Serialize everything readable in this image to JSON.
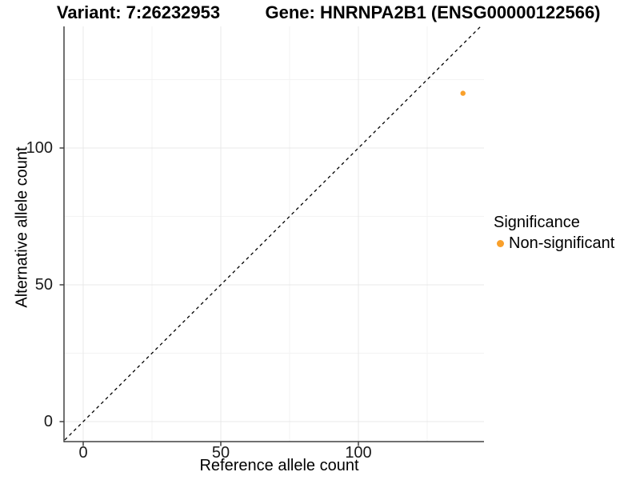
{
  "titles": {
    "left": "Variant: 7:26232953",
    "right": "Gene: HNRNPA2B1 (ENSG00000122566)"
  },
  "chart_data": {
    "type": "scatter",
    "title": "Variant: 7:26232953   |   Gene: HNRNPA2B1 (ENSG00000122566)",
    "xlabel": "Reference allele count",
    "ylabel": "Alternative allele count",
    "x_ticks": [
      0,
      50,
      100
    ],
    "y_ticks": [
      0,
      50,
      100
    ],
    "x_minor_ticks": [
      25,
      75,
      125
    ],
    "y_minor_ticks": [
      25,
      75,
      125
    ],
    "xlim": [
      -7,
      145.7
    ],
    "ylim": [
      -7.3,
      144.4
    ],
    "grid": {
      "major": true,
      "minor": true
    },
    "reference_line": {
      "type": "identity",
      "style": "dashed",
      "color": "#000000"
    },
    "points": [
      {
        "x": 138,
        "y": 120,
        "series": "Non-significant"
      }
    ],
    "legend": {
      "title": "Significance",
      "position": "right",
      "items": [
        {
          "label": "Non-significant",
          "color": "#F9A02B"
        }
      ]
    },
    "colors": {
      "point": "#F9A02B",
      "grid_major": "#e8e8e8",
      "grid_minor": "#f3f3f3",
      "axis_line": "#404040",
      "background": "#ffffff"
    }
  }
}
